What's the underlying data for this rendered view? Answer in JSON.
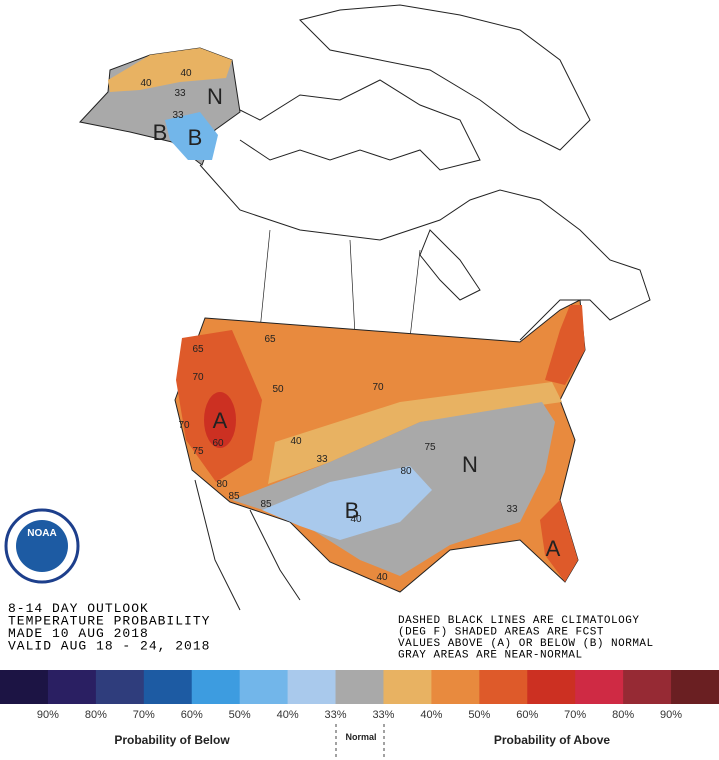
{
  "header": {
    "lines": [
      "8-14 DAY OUTLOOK",
      "TEMPERATURE PROBABILITY",
      "MADE  10 AUG 2018",
      "VALID  AUG 18 - 24, 2018"
    ]
  },
  "notes": {
    "lines": [
      "DASHED BLACK LINES ARE CLIMATOLOGY",
      "(DEG F) SHADED AREAS ARE FCST",
      "VALUES ABOVE (A) OR BELOW (B) NORMAL",
      "GRAY AREAS ARE NEAR-NORMAL"
    ]
  },
  "logo": {
    "text": "NOAA"
  },
  "map": {
    "labels": [
      "A",
      "A",
      "B",
      "B",
      "B",
      "N",
      "N",
      "40",
      "40",
      "33",
      "33",
      "50",
      "40",
      "33",
      "60",
      "70",
      "65",
      "70",
      "75",
      "80",
      "85",
      "40",
      "33",
      "40",
      "75",
      "70",
      "80",
      "85",
      "65"
    ]
  },
  "legend": {
    "colors": [
      "#1c1444",
      "#2a1f62",
      "#2f3d7c",
      "#1d5ba3",
      "#3d9ce0",
      "#72b6ea",
      "#a9c9ec",
      "#a9a9a9",
      "#e8b262",
      "#e88a3e",
      "#de5a2a",
      "#cc3022",
      "#cf2a44",
      "#962a34",
      "#6a1f22"
    ],
    "labels": [
      "90%",
      "80%",
      "70%",
      "60%",
      "50%",
      "40%",
      "33%",
      "33%",
      "40%",
      "50%",
      "60%",
      "70%",
      "80%",
      "90%"
    ],
    "below": "Probability of Below",
    "normal": "Normal",
    "above": "Probability of Above"
  }
}
